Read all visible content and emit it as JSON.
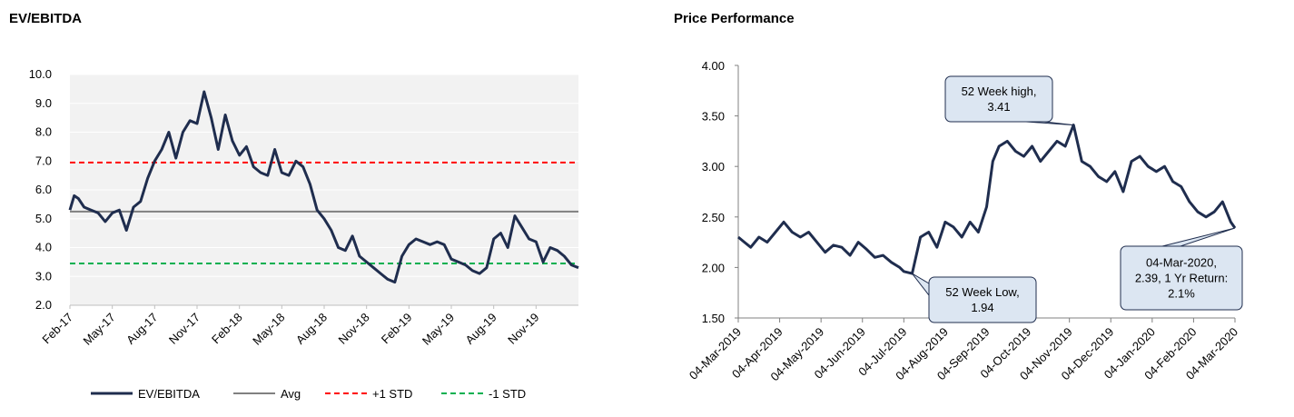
{
  "panels": {
    "left_title": "EV/EBITDA",
    "right_title": "Price Performance"
  },
  "colors": {
    "series_line": "#1f2d4e",
    "avg_line": "#808080",
    "plus_std": "#ff0000",
    "minus_std": "#00b050",
    "plot_bg": "#f2f2f2",
    "grid": "#ffffff",
    "callout_fill": "#dce6f2",
    "callout_stroke": "#1f2d4e"
  },
  "chart_data": [
    {
      "type": "line",
      "title": "EV/EBITDA",
      "categories": [
        "Feb-17",
        "May-17",
        "Aug-17",
        "Nov-17",
        "Feb-18",
        "May-18",
        "Aug-18",
        "Nov-18",
        "Feb-19",
        "May-19",
        "Aug-19",
        "Nov-19"
      ],
      "y_ticks": [
        "2.0",
        "3.0",
        "4.0",
        "5.0",
        "6.0",
        "7.0",
        "8.0",
        "9.0",
        "10.0"
      ],
      "ylim": [
        2.0,
        10.0
      ],
      "x_range": [
        0,
        36
      ],
      "grid": true,
      "legend_position": "bottom",
      "series": [
        {
          "name": "EV/EBITDA",
          "style": "solid-thick",
          "x": [
            0,
            0.3,
            0.6,
            1,
            1.5,
            2,
            2.5,
            3,
            3.5,
            4,
            4.5,
            5,
            5.5,
            6,
            6.5,
            7,
            7.5,
            8,
            8.5,
            9,
            9.5,
            10,
            10.5,
            11,
            11.5,
            12,
            12.5,
            13,
            13.5,
            14,
            14.5,
            15,
            15.5,
            16,
            16.5,
            17,
            17.5,
            18,
            18.5,
            19,
            19.5,
            20,
            20.5,
            21,
            21.5,
            22,
            22.5,
            23,
            23.5,
            24,
            24.5,
            25,
            25.5,
            26,
            26.5,
            27,
            27.5,
            28,
            28.5,
            29,
            29.5,
            30,
            30.5,
            31,
            31.5,
            32,
            32.5,
            33,
            33.5,
            34,
            34.5,
            35,
            35.5,
            36
          ],
          "y": [
            5.3,
            5.8,
            5.7,
            5.4,
            5.3,
            5.2,
            4.9,
            5.2,
            5.3,
            4.6,
            5.4,
            5.6,
            6.4,
            7.0,
            7.4,
            8.0,
            7.1,
            8.0,
            8.4,
            8.3,
            9.4,
            8.5,
            7.4,
            8.6,
            7.7,
            7.2,
            7.5,
            6.8,
            6.6,
            6.5,
            7.4,
            6.6,
            6.5,
            7.0,
            6.8,
            6.2,
            5.3,
            5.0,
            4.6,
            4.0,
            3.9,
            4.4,
            3.7,
            3.5,
            3.3,
            3.1,
            2.9,
            2.8,
            3.7,
            4.1,
            4.3,
            4.2,
            4.1,
            4.2,
            4.1,
            3.6,
            3.5,
            3.4,
            3.2,
            3.1,
            3.3,
            4.3,
            4.5,
            4.0,
            5.1,
            4.7,
            4.3,
            4.2,
            3.5,
            4.0,
            3.9,
            3.7,
            3.4,
            3.3
          ]
        },
        {
          "name": "Avg",
          "style": "solid",
          "y_const": 5.25
        },
        {
          "name": "+1 STD",
          "style": "dashed",
          "y_const": 6.95
        },
        {
          "name": "-1 STD",
          "style": "dashed",
          "y_const": 3.45
        }
      ]
    },
    {
      "type": "line",
      "title": "Price Performance",
      "categories": [
        "04-Mar-2019",
        "04-Apr-2019",
        "04-May-2019",
        "04-Jun-2019",
        "04-Jul-2019",
        "04-Aug-2019",
        "04-Sep-2019",
        "04-Oct-2019",
        "04-Nov-2019",
        "04-Dec-2019",
        "04-Jan-2020",
        "04-Feb-2020",
        "04-Mar-2020"
      ],
      "y_ticks": [
        "1.50",
        "2.00",
        "2.50",
        "3.00",
        "3.50",
        "4.00"
      ],
      "ylim": [
        1.5,
        4.0
      ],
      "x_range": [
        0,
        12
      ],
      "grid": false,
      "series": [
        {
          "name": "Price",
          "style": "solid-thick",
          "x": [
            0,
            0.15,
            0.3,
            0.5,
            0.7,
            0.9,
            1.1,
            1.3,
            1.5,
            1.7,
            1.9,
            2.1,
            2.3,
            2.5,
            2.7,
            2.9,
            3.1,
            3.3,
            3.5,
            3.7,
            3.9,
            4.0,
            4.2,
            4.4,
            4.6,
            4.8,
            5.0,
            5.2,
            5.4,
            5.6,
            5.8,
            6.0,
            6.15,
            6.3,
            6.5,
            6.7,
            6.9,
            7.1,
            7.3,
            7.5,
            7.7,
            7.9,
            8.1,
            8.3,
            8.5,
            8.7,
            8.9,
            9.1,
            9.3,
            9.5,
            9.7,
            9.9,
            10.1,
            10.3,
            10.5,
            10.7,
            10.9,
            11.1,
            11.3,
            11.5,
            11.7,
            11.9,
            12.0
          ],
          "y": [
            2.3,
            2.25,
            2.2,
            2.3,
            2.25,
            2.35,
            2.45,
            2.35,
            2.3,
            2.35,
            2.25,
            2.15,
            2.22,
            2.2,
            2.12,
            2.25,
            2.18,
            2.1,
            2.12,
            2.05,
            2.0,
            1.96,
            1.94,
            2.3,
            2.35,
            2.2,
            2.45,
            2.4,
            2.3,
            2.45,
            2.35,
            2.6,
            3.05,
            3.2,
            3.25,
            3.15,
            3.1,
            3.2,
            3.05,
            3.15,
            3.25,
            3.2,
            3.41,
            3.05,
            3.0,
            2.9,
            2.85,
            2.95,
            2.75,
            3.05,
            3.1,
            3.0,
            2.95,
            3.0,
            2.85,
            2.8,
            2.65,
            2.55,
            2.5,
            2.55,
            2.65,
            2.45,
            2.39
          ]
        }
      ],
      "annotations": [
        {
          "lines": [
            "52 Week high,",
            "3.41"
          ]
        },
        {
          "lines": [
            "52 Week Low,",
            "1.94"
          ]
        },
        {
          "lines": [
            "04-Mar-2020,",
            "2.39, 1 Yr Return:",
            "2.1%"
          ]
        }
      ]
    }
  ]
}
